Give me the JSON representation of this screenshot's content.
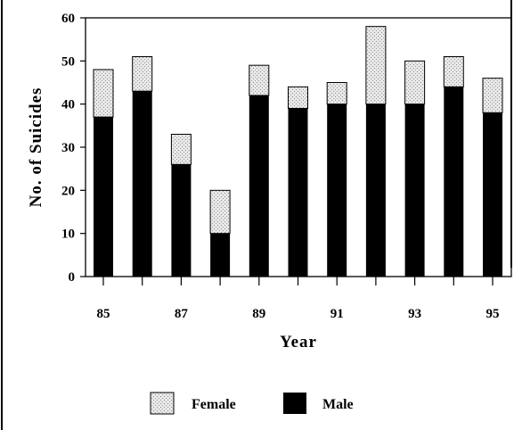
{
  "chart_data": {
    "type": "bar",
    "stacked": true,
    "title": "",
    "xlabel": "Year",
    "ylabel": "No. of Suicides",
    "ylim": [
      0,
      60
    ],
    "yticks": [
      0,
      10,
      20,
      30,
      40,
      50,
      60
    ],
    "x_tick_labels": [
      "85",
      "87",
      "89",
      "91",
      "93",
      "95"
    ],
    "x": [
      85,
      86,
      87,
      88,
      89,
      90,
      91,
      92,
      93,
      94,
      95
    ],
    "series": [
      {
        "name": "Male",
        "color": "#000000",
        "values": [
          37,
          43,
          26,
          10,
          42,
          39,
          40,
          40,
          40,
          44,
          38
        ]
      },
      {
        "name": "Female",
        "color": "#d9d9d9",
        "values": [
          11,
          8,
          7,
          10,
          7,
          5,
          5,
          18,
          10,
          7,
          8
        ]
      }
    ],
    "legend": [
      "Female",
      "Male"
    ],
    "legend_position": "bottom",
    "grid": false
  }
}
